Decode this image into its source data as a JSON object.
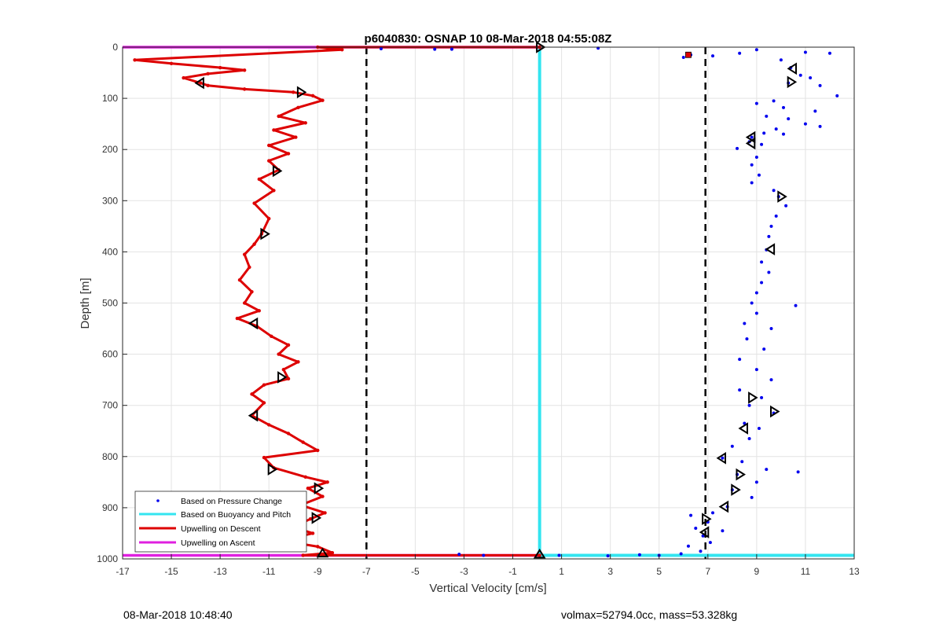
{
  "chart_data": {
    "type": "scatter",
    "title": "p6040830: OSNAP 10 08-Mar-2018 04:55:08Z",
    "xlabel": "Vertical Velocity [cm/s]",
    "ylabel": "Depth [m]",
    "xlim": [
      -17,
      13
    ],
    "ylim": [
      0,
      1000
    ],
    "y_reversed": true,
    "grid": true,
    "xticks": [
      -17,
      -15,
      -13,
      -11,
      -9,
      -7,
      -5,
      -3,
      -1,
      1,
      3,
      5,
      7,
      9,
      11,
      13
    ],
    "yticks": [
      0,
      100,
      200,
      300,
      400,
      500,
      600,
      700,
      800,
      900,
      1000
    ],
    "legend_placement": "bottom-left",
    "vertical_dashed_lines": [
      -7,
      6.9
    ],
    "series": [
      {
        "name": "Based on Pressure Change",
        "style": "dots",
        "color": "#0000ee",
        "points": [
          [
            6.3,
            15
          ],
          [
            6.0,
            20
          ],
          [
            7.2,
            17
          ],
          [
            8.3,
            12
          ],
          [
            9.0,
            5
          ],
          [
            10.0,
            25
          ],
          [
            11.0,
            10
          ],
          [
            12.0,
            12
          ],
          [
            10.4,
            40
          ],
          [
            10.8,
            55
          ],
          [
            11.2,
            60
          ],
          [
            10.3,
            70
          ],
          [
            11.6,
            75
          ],
          [
            12.3,
            95
          ],
          [
            9.7,
            105
          ],
          [
            9.0,
            110
          ],
          [
            10.1,
            118
          ],
          [
            11.4,
            125
          ],
          [
            9.4,
            135
          ],
          [
            10.3,
            140
          ],
          [
            11.0,
            150
          ],
          [
            11.6,
            155
          ],
          [
            9.8,
            160
          ],
          [
            9.3,
            168
          ],
          [
            8.8,
            176
          ],
          [
            10.1,
            170
          ],
          [
            8.7,
            185
          ],
          [
            8.2,
            198
          ],
          [
            9.2,
            190
          ],
          [
            9.0,
            215
          ],
          [
            8.8,
            230
          ],
          [
            9.1,
            250
          ],
          [
            8.8,
            265
          ],
          [
            9.7,
            280
          ],
          [
            9.9,
            292
          ],
          [
            10.2,
            310
          ],
          [
            9.8,
            330
          ],
          [
            9.6,
            350
          ],
          [
            9.5,
            370
          ],
          [
            9.4,
            396
          ],
          [
            9.2,
            420
          ],
          [
            9.5,
            440
          ],
          [
            9.2,
            460
          ],
          [
            9.0,
            480
          ],
          [
            8.8,
            500
          ],
          [
            10.6,
            505
          ],
          [
            9.0,
            520
          ],
          [
            8.5,
            540
          ],
          [
            9.6,
            550
          ],
          [
            8.6,
            570
          ],
          [
            9.3,
            590
          ],
          [
            8.3,
            610
          ],
          [
            9.0,
            630
          ],
          [
            9.6,
            650
          ],
          [
            8.3,
            670
          ],
          [
            9.2,
            685
          ],
          [
            8.7,
            700
          ],
          [
            9.7,
            715
          ],
          [
            8.5,
            735
          ],
          [
            9.1,
            745
          ],
          [
            8.7,
            765
          ],
          [
            8.0,
            780
          ],
          [
            7.6,
            803
          ],
          [
            8.4,
            810
          ],
          [
            9.4,
            825
          ],
          [
            10.7,
            830
          ],
          [
            8.2,
            835
          ],
          [
            9.0,
            850
          ],
          [
            8.0,
            865
          ],
          [
            8.8,
            880
          ],
          [
            7.8,
            898
          ],
          [
            7.2,
            910
          ],
          [
            6.3,
            915
          ],
          [
            7.0,
            928
          ],
          [
            6.5,
            940
          ],
          [
            7.6,
            945
          ],
          [
            6.8,
            955
          ],
          [
            7.1,
            968
          ],
          [
            6.2,
            975
          ],
          [
            6.7,
            985
          ],
          [
            -6.4,
            3
          ],
          [
            -4.2,
            4
          ],
          [
            -3.5,
            4
          ],
          [
            2.5,
            2
          ],
          [
            -3.2,
            991
          ],
          [
            -2.2,
            993
          ],
          [
            0.9,
            993
          ],
          [
            2.9,
            994
          ],
          [
            4.2,
            992
          ],
          [
            5.0,
            993
          ],
          [
            5.9,
            990
          ]
        ]
      },
      {
        "name": "Based on Buoyancy and Pitch",
        "style": "line",
        "color": "#33e5f0",
        "segments": [
          [
            [
              0.1,
              0
            ],
            [
              0.1,
              993
            ]
          ],
          [
            [
              0.1,
              993
            ],
            [
              13,
              993
            ]
          ]
        ]
      },
      {
        "name": "Upwelling on Descent",
        "style": "line",
        "color": "#dd0000",
        "points": [
          [
            0.1,
            0
          ],
          [
            -9.0,
            0
          ],
          [
            -8.0,
            5
          ],
          [
            -16.5,
            25
          ],
          [
            -15.0,
            32
          ],
          [
            -13.0,
            40
          ],
          [
            -12.0,
            45
          ],
          [
            -13.5,
            52
          ],
          [
            -14.5,
            60
          ],
          [
            -13.8,
            70
          ],
          [
            -13.5,
            75
          ],
          [
            -12.0,
            82
          ],
          [
            -10.0,
            88
          ],
          [
            -9.2,
            95
          ],
          [
            -8.8,
            104
          ],
          [
            -9.8,
            118
          ],
          [
            -10.6,
            135
          ],
          [
            -9.5,
            148
          ],
          [
            -10.8,
            162
          ],
          [
            -9.9,
            176
          ],
          [
            -11.0,
            192
          ],
          [
            -10.2,
            208
          ],
          [
            -11.0,
            222
          ],
          [
            -10.6,
            240
          ],
          [
            -11.4,
            258
          ],
          [
            -10.8,
            280
          ],
          [
            -11.6,
            305
          ],
          [
            -11.0,
            335
          ],
          [
            -11.3,
            365
          ],
          [
            -11.6,
            385
          ],
          [
            -12.0,
            405
          ],
          [
            -11.8,
            430
          ],
          [
            -12.2,
            455
          ],
          [
            -11.7,
            478
          ],
          [
            -12.0,
            500
          ],
          [
            -11.4,
            515
          ],
          [
            -12.3,
            530
          ],
          [
            -11.5,
            545
          ],
          [
            -10.9,
            565
          ],
          [
            -10.2,
            582
          ],
          [
            -10.6,
            600
          ],
          [
            -9.8,
            615
          ],
          [
            -10.4,
            630
          ],
          [
            -10.2,
            648
          ],
          [
            -11.2,
            660
          ],
          [
            -11.7,
            678
          ],
          [
            -11.2,
            695
          ],
          [
            -11.7,
            720
          ],
          [
            -11.0,
            738
          ],
          [
            -10.2,
            755
          ],
          [
            -9.6,
            772
          ],
          [
            -9.0,
            788
          ],
          [
            -11.2,
            802
          ],
          [
            -10.8,
            822
          ],
          [
            -9.5,
            840
          ],
          [
            -8.6,
            850
          ],
          [
            -9.4,
            862
          ],
          [
            -8.8,
            878
          ],
          [
            -9.7,
            895
          ],
          [
            -8.7,
            910
          ],
          [
            -9.3,
            922
          ],
          [
            -10.0,
            938
          ],
          [
            -9.2,
            950
          ],
          [
            -10.5,
            964
          ],
          [
            -9.0,
            976
          ],
          [
            -8.4,
            988
          ],
          [
            -9.6,
            993
          ],
          [
            0.1,
            993
          ]
        ]
      },
      {
        "name": "Upwelling on Ascent",
        "style": "line",
        "color": "#e020e0",
        "segments": [
          [
            [
              -17,
              0
            ],
            [
              0.1,
              0
            ]
          ],
          [
            [
              -17,
              993
            ],
            [
              0.1,
              993
            ]
          ]
        ]
      }
    ],
    "triangle_markers": [
      {
        "x": -13.8,
        "y": 70,
        "dir": "left"
      },
      {
        "x": -9.7,
        "y": 88,
        "dir": "right"
      },
      {
        "x": -10.7,
        "y": 242,
        "dir": "right"
      },
      {
        "x": -11.2,
        "y": 365,
        "dir": "right"
      },
      {
        "x": -11.6,
        "y": 540,
        "dir": "left"
      },
      {
        "x": -10.5,
        "y": 645,
        "dir": "right"
      },
      {
        "x": -11.6,
        "y": 720,
        "dir": "left"
      },
      {
        "x": -10.9,
        "y": 825,
        "dir": "right"
      },
      {
        "x": -9.0,
        "y": 862,
        "dir": "right"
      },
      {
        "x": -9.1,
        "y": 920,
        "dir": "right"
      },
      {
        "x": -10.8,
        "y": 963,
        "dir": "left"
      },
      {
        "x": -8.8,
        "y": 990,
        "dir": "up"
      },
      {
        "x": 0.1,
        "y": 0,
        "dir": "right"
      },
      {
        "x": 0.1,
        "y": 992,
        "dir": "up"
      },
      {
        "x": 10.5,
        "y": 42,
        "dir": "left"
      },
      {
        "x": 10.4,
        "y": 68,
        "dir": "right"
      },
      {
        "x": 8.8,
        "y": 176,
        "dir": "left"
      },
      {
        "x": 8.8,
        "y": 188,
        "dir": "left"
      },
      {
        "x": 10.0,
        "y": 292,
        "dir": "right"
      },
      {
        "x": 9.6,
        "y": 395,
        "dir": "left"
      },
      {
        "x": 8.8,
        "y": 685,
        "dir": "right"
      },
      {
        "x": 9.7,
        "y": 712,
        "dir": "right"
      },
      {
        "x": 8.5,
        "y": 745,
        "dir": "left"
      },
      {
        "x": 7.6,
        "y": 803,
        "dir": "left"
      },
      {
        "x": 8.3,
        "y": 835,
        "dir": "right"
      },
      {
        "x": 8.1,
        "y": 865,
        "dir": "right"
      },
      {
        "x": 7.7,
        "y": 898,
        "dir": "left"
      },
      {
        "x": 6.9,
        "y": 922,
        "dir": "right"
      },
      {
        "x": 6.9,
        "y": 948,
        "dir": "left"
      }
    ],
    "red_marker": {
      "x": 6.2,
      "y": 15
    }
  },
  "footer": {
    "timestamp": "08-Mar-2018 10:48:40",
    "volmax_mass": "volmax=52794.0cc, mass=53.328kg"
  },
  "colors": {
    "pressure": "#0000ee",
    "buoyancy": "#33e5f0",
    "descent": "#dd0000",
    "ascent": "#e020e0",
    "grid": "#e3e3e3",
    "axis": "#262626"
  }
}
